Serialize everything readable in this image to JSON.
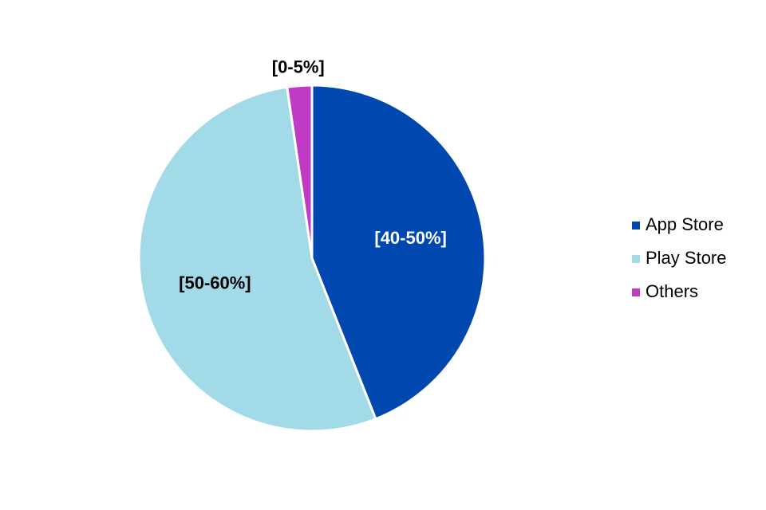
{
  "chart_data": {
    "type": "pie",
    "categories": [
      "App Store",
      "Play Store",
      "Others"
    ],
    "values": [
      44,
      53.7,
      2.3
    ],
    "value_labels": [
      "[40-50%]",
      "[50-60%]",
      "[0-5%]"
    ],
    "colors": [
      "#0047af",
      "#a2dae8",
      "#c03bc4"
    ],
    "label_colors": [
      "#ffffff",
      "#000000",
      "#000000"
    ],
    "legend": "right"
  }
}
